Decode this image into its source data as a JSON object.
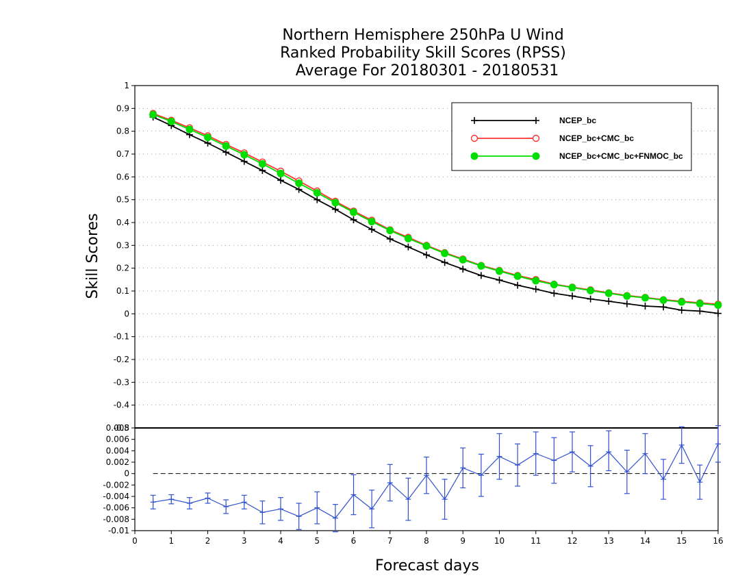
{
  "chart_data": [
    {
      "type": "line",
      "title_lines": [
        "Northern Hemisphere 250hPa U Wind",
        "Ranked Probability Skill Scores (RPSS)",
        "Average For 20180301 - 20180531"
      ],
      "xlabel": "Forecast days",
      "ylabel": "Skill Scores",
      "xlim": [
        0,
        16
      ],
      "ylim": [
        -0.5,
        1.0
      ],
      "x_ticks": [
        "0",
        "1",
        "2",
        "3",
        "4",
        "5",
        "6",
        "7",
        "8",
        "9",
        "10",
        "11",
        "12",
        "13",
        "14",
        "15",
        "16"
      ],
      "y_ticks": [
        "1",
        "0.9",
        "0.8",
        "0.7",
        "0.6",
        "0.5",
        "0.4",
        "0.3",
        "0.2",
        "0.1",
        "0",
        "-0.1",
        "-0.2",
        "-0.3",
        "-0.4",
        "-0.5"
      ],
      "grid": true,
      "legend_position": "top-right",
      "x": [
        0.5,
        1,
        1.5,
        2,
        2.5,
        3,
        3.5,
        4,
        4.5,
        5,
        5.5,
        6,
        6.5,
        7,
        7.5,
        8,
        8.5,
        9,
        9.5,
        10,
        10.5,
        11,
        11.5,
        12,
        12.5,
        13,
        13.5,
        14,
        14.5,
        15,
        15.5,
        16
      ],
      "series": [
        {
          "name": "NCEP_bc",
          "color": "#000000",
          "marker": "plus",
          "values": [
            0.862,
            0.825,
            0.785,
            0.748,
            0.708,
            0.668,
            0.628,
            0.585,
            0.545,
            0.5,
            0.458,
            0.412,
            0.37,
            0.328,
            0.293,
            0.258,
            0.225,
            0.196,
            0.168,
            0.148,
            0.125,
            0.108,
            0.09,
            0.078,
            0.065,
            0.055,
            0.044,
            0.034,
            0.03,
            0.016,
            0.012,
            0.002
          ]
        },
        {
          "name": "NCEP_bc+CMC_bc",
          "color": "#ff3030",
          "marker": "open-circle",
          "values": [
            0.878,
            0.848,
            0.815,
            0.78,
            0.742,
            0.705,
            0.665,
            0.625,
            0.582,
            0.538,
            0.493,
            0.45,
            0.41,
            0.368,
            0.335,
            0.3,
            0.268,
            0.24,
            0.212,
            0.19,
            0.168,
            0.15,
            0.13,
            0.117,
            0.105,
            0.092,
            0.08,
            0.072,
            0.062,
            0.055,
            0.048,
            0.042
          ]
        },
        {
          "name": "NCEP_bc+CMC_bc+FNMOC_bc",
          "color": "#00dd00",
          "marker": "filled-circle",
          "values": [
            0.873,
            0.843,
            0.808,
            0.773,
            0.735,
            0.697,
            0.657,
            0.615,
            0.572,
            0.53,
            0.487,
            0.445,
            0.404,
            0.365,
            0.33,
            0.297,
            0.265,
            0.237,
            0.21,
            0.187,
            0.165,
            0.145,
            0.128,
            0.115,
            0.102,
            0.09,
            0.078,
            0.07,
            0.06,
            0.052,
            0.045,
            0.038
          ]
        }
      ]
    },
    {
      "type": "line",
      "title": "",
      "xlabel": "Forecast days",
      "ylabel": "",
      "xlim": [
        0,
        16
      ],
      "ylim": [
        -0.01,
        0.008
      ],
      "y_ticks": [
        "0.008",
        "0.006",
        "0.004",
        "0.002",
        "0",
        "-0.002",
        "-0.004",
        "-0.006",
        "-0.008",
        "-0.01"
      ],
      "reference_line": 0,
      "x": [
        0.5,
        1,
        1.5,
        2,
        2.5,
        3,
        3.5,
        4,
        4.5,
        5,
        5.5,
        6,
        6.5,
        7,
        7.5,
        8,
        8.5,
        9,
        9.5,
        10,
        10.5,
        11,
        11.5,
        12,
        12.5,
        13,
        13.5,
        14,
        14.5,
        15,
        15.5,
        16
      ],
      "series": [
        {
          "name": "",
          "color": "#3050d0",
          "marker": "plus",
          "values": [
            -0.005,
            -0.0045,
            -0.0052,
            -0.0043,
            -0.0058,
            -0.005,
            -0.0068,
            -0.0062,
            -0.0075,
            -0.006,
            -0.0078,
            -0.0037,
            -0.0062,
            -0.0016,
            -0.0045,
            -0.0003,
            -0.0045,
            0.001,
            -0.0003,
            0.003,
            0.0015,
            0.0035,
            0.0023,
            0.0038,
            0.0013,
            0.0038,
            0.0003,
            0.0035,
            -0.001,
            0.005,
            -0.0015,
            0.0052
          ],
          "error_low": [
            -0.0062,
            -0.0053,
            -0.0062,
            -0.0052,
            -0.007,
            -0.0062,
            -0.0088,
            -0.0082,
            -0.0098,
            -0.0088,
            -0.0102,
            -0.0072,
            -0.0095,
            -0.0048,
            -0.0082,
            -0.0035,
            -0.008,
            -0.0025,
            -0.004,
            -0.001,
            -0.0022,
            -0.0003,
            -0.0017,
            0.0003,
            -0.0023,
            0.0005,
            -0.0035,
            0.0,
            -0.0045,
            0.0018,
            -0.0045,
            0.002
          ],
          "error_high": [
            -0.0038,
            -0.0037,
            -0.0042,
            -0.0034,
            -0.0046,
            -0.0038,
            -0.0048,
            -0.0042,
            -0.0052,
            -0.0032,
            -0.0054,
            -0.0002,
            -0.0029,
            0.0016,
            -0.0008,
            0.0029,
            -0.001,
            0.0045,
            0.0034,
            0.007,
            0.0052,
            0.0073,
            0.0063,
            0.0073,
            0.0049,
            0.0075,
            0.0041,
            0.007,
            0.0025,
            0.0082,
            0.0015,
            0.0084
          ]
        }
      ]
    }
  ]
}
